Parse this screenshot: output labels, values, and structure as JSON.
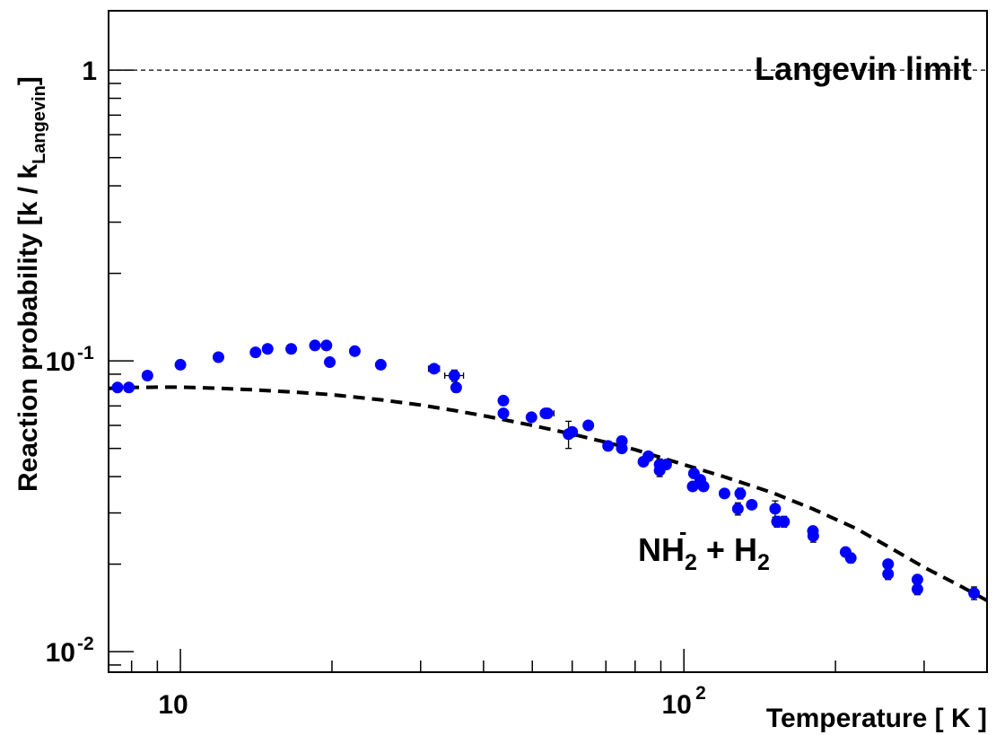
{
  "chart_data": {
    "type": "scatter",
    "title": "",
    "xlabel": "Temperature [ K ]",
    "ylabel": "Reaction probability [k / k",
    "ylabel_sub": "Langevin",
    "ylabel_close": "]",
    "xscale": "log",
    "yscale": "log",
    "xlim": [
      7.2,
      400
    ],
    "ylim": [
      0.0085,
      1.6
    ],
    "x_ticks": [
      {
        "value": 10,
        "label": "10",
        "sup": ""
      },
      {
        "value": 100,
        "label": "10",
        "sup": "2"
      }
    ],
    "y_ticks": [
      {
        "value": 0.01,
        "label": "10",
        "sup": "-2"
      },
      {
        "value": 0.1,
        "label": "10",
        "sup": "-1"
      },
      {
        "value": 1,
        "label": "1",
        "sup": ""
      }
    ],
    "reference_line": {
      "y": 1.0,
      "label": "Langevin limit",
      "style": "dashed"
    },
    "reaction_label": {
      "a": "NH",
      "a_sub": "2",
      "a_sup": "-",
      "op": " + ",
      "b": "H",
      "b_sub": "2"
    },
    "point_color": "#0000ff",
    "fit_color": "#000000",
    "grid": false,
    "points": [
      {
        "x": 7.5,
        "y": 0.081
      },
      {
        "x": 7.9,
        "y": 0.081,
        "xerr": 0.15,
        "yerr": 0.002
      },
      {
        "x": 8.6,
        "y": 0.089
      },
      {
        "x": 10.0,
        "y": 0.097
      },
      {
        "x": 11.9,
        "y": 0.103
      },
      {
        "x": 14.1,
        "y": 0.107
      },
      {
        "x": 14.9,
        "y": 0.11
      },
      {
        "x": 16.6,
        "y": 0.11
      },
      {
        "x": 18.5,
        "y": 0.113
      },
      {
        "x": 19.5,
        "y": 0.113
      },
      {
        "x": 19.8,
        "y": 0.099,
        "yerr": 0.003
      },
      {
        "x": 22.2,
        "y": 0.108
      },
      {
        "x": 25.0,
        "y": 0.097
      },
      {
        "x": 31.9,
        "y": 0.094,
        "xerr": 0.8
      },
      {
        "x": 35.0,
        "y": 0.089,
        "xerr": 1.5,
        "yerr": 0.004
      },
      {
        "x": 35.3,
        "y": 0.081,
        "yerr": 0.003
      },
      {
        "x": 43.8,
        "y": 0.073,
        "xerr": 0.8
      },
      {
        "x": 43.8,
        "y": 0.066
      },
      {
        "x": 49.8,
        "y": 0.064,
        "xerr": 0.8
      },
      {
        "x": 53.1,
        "y": 0.066
      },
      {
        "x": 53.6,
        "y": 0.066,
        "xerr": 1.6
      },
      {
        "x": 59.0,
        "y": 0.056,
        "yerr": 0.006
      },
      {
        "x": 60.0,
        "y": 0.057
      },
      {
        "x": 64.6,
        "y": 0.06,
        "yerr": 0.002
      },
      {
        "x": 70.7,
        "y": 0.051
      },
      {
        "x": 75.3,
        "y": 0.053,
        "yerr": 0.002
      },
      {
        "x": 75.3,
        "y": 0.05
      },
      {
        "x": 83.1,
        "y": 0.045
      },
      {
        "x": 85.0,
        "y": 0.047
      },
      {
        "x": 89.5,
        "y": 0.044,
        "yerr": 0.002
      },
      {
        "x": 89.5,
        "y": 0.042,
        "yerr": 0.002
      },
      {
        "x": 92.2,
        "y": 0.044
      },
      {
        "x": 104.1,
        "y": 0.037
      },
      {
        "x": 104.7,
        "y": 0.041,
        "yerr": 0.0015
      },
      {
        "x": 107.8,
        "y": 0.039
      },
      {
        "x": 109.4,
        "y": 0.037
      },
      {
        "x": 120.4,
        "y": 0.035
      },
      {
        "x": 128.0,
        "y": 0.031,
        "yerr": 0.0015
      },
      {
        "x": 129.4,
        "y": 0.035,
        "yerr": 0.0015
      },
      {
        "x": 136.4,
        "y": 0.032
      },
      {
        "x": 151.8,
        "y": 0.031,
        "yerr": 0.002
      },
      {
        "x": 153.1,
        "y": 0.028,
        "yerr": 0.0012
      },
      {
        "x": 158.1,
        "y": 0.028,
        "yerr": 0.0012
      },
      {
        "x": 180.4,
        "y": 0.026
      },
      {
        "x": 180.7,
        "y": 0.025,
        "yerr": 0.0012
      },
      {
        "x": 209.5,
        "y": 0.022
      },
      {
        "x": 214.5,
        "y": 0.021,
        "yerr": 0.0008
      },
      {
        "x": 254.4,
        "y": 0.02
      },
      {
        "x": 254.4,
        "y": 0.0185,
        "yerr": 0.0008
      },
      {
        "x": 290.9,
        "y": 0.0177
      },
      {
        "x": 290.9,
        "y": 0.0164,
        "yerr": 0.0007
      },
      {
        "x": 377.0,
        "y": 0.0159,
        "yerr": 0.0008
      }
    ],
    "fit_curve": {
      "style": "dashed",
      "x": [
        7.2,
        8,
        9,
        10,
        12,
        14,
        16,
        18,
        20,
        25,
        30,
        35,
        40,
        50,
        60,
        70,
        80,
        100,
        120,
        150,
        180,
        220,
        260,
        300,
        350,
        400
      ],
      "y": [
        0.0805,
        0.081,
        0.0812,
        0.0812,
        0.0805,
        0.0795,
        0.0785,
        0.0775,
        0.0765,
        0.0735,
        0.0705,
        0.0675,
        0.0648,
        0.06,
        0.056,
        0.0525,
        0.0495,
        0.044,
        0.04,
        0.0352,
        0.031,
        0.0265,
        0.0225,
        0.0195,
        0.017,
        0.015
      ]
    }
  }
}
